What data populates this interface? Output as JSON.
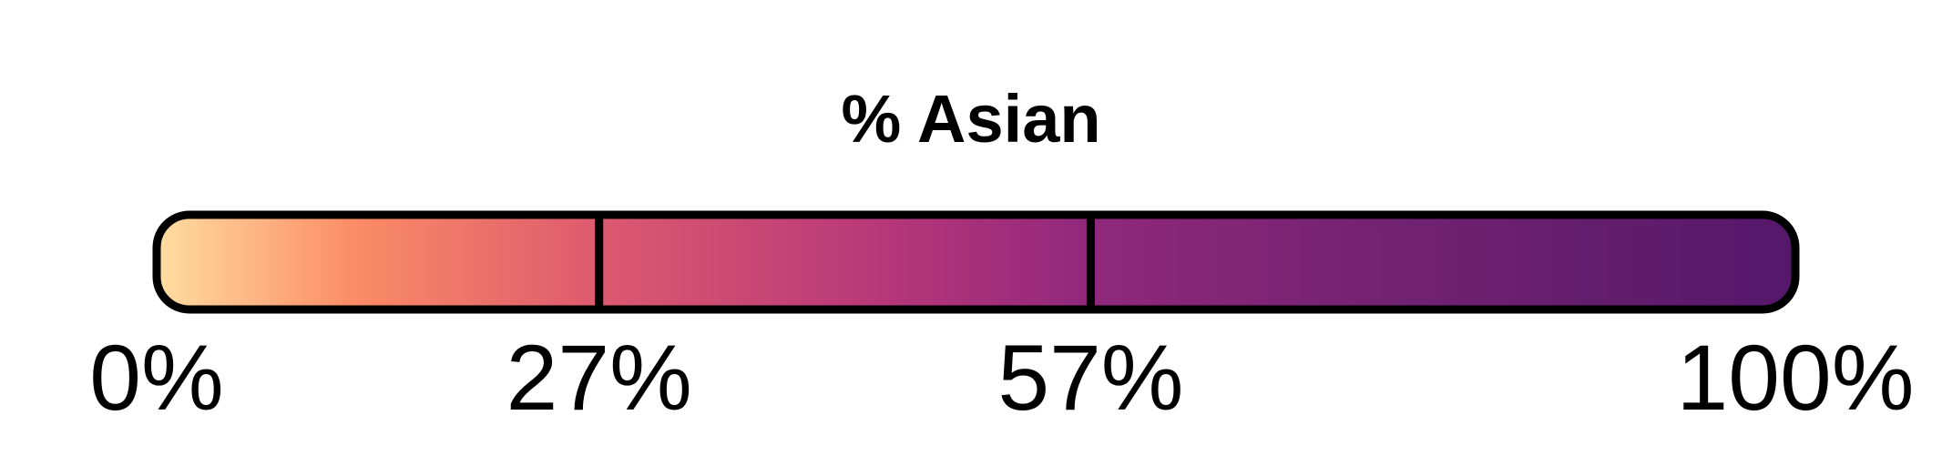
{
  "chart_data": {
    "type": "color-legend",
    "title": "% Asian",
    "range": [
      0,
      100
    ],
    "ticks": [
      {
        "value": 0,
        "label": "0%"
      },
      {
        "value": 27,
        "label": "27%"
      },
      {
        "value": 57,
        "label": "57%"
      },
      {
        "value": 100,
        "label": "100%"
      }
    ],
    "dividers": [
      27,
      57
    ],
    "gradient_stops": [
      {
        "value": 0,
        "color": "#ffdda0"
      },
      {
        "value": 12,
        "color": "#fb8c66"
      },
      {
        "value": 27,
        "color": "#dc5a6e"
      },
      {
        "value": 45,
        "color": "#b5367a"
      },
      {
        "value": 57,
        "color": "#90287b"
      },
      {
        "value": 75,
        "color": "#732272"
      },
      {
        "value": 100,
        "color": "#55176a"
      }
    ],
    "border_color": "#000000"
  }
}
